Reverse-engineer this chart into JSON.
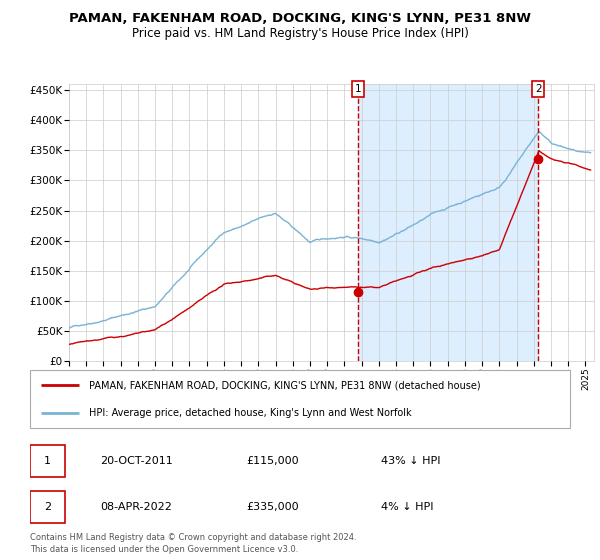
{
  "title": "PAMAN, FAKENHAM ROAD, DOCKING, KING'S LYNN, PE31 8NW",
  "subtitle": "Price paid vs. HM Land Registry's House Price Index (HPI)",
  "ylabel_ticks": [
    "£0",
    "£50K",
    "£100K",
    "£150K",
    "£200K",
    "£250K",
    "£300K",
    "£350K",
    "£400K",
    "£450K"
  ],
  "ytick_vals": [
    0,
    50000,
    100000,
    150000,
    200000,
    250000,
    300000,
    350000,
    400000,
    450000
  ],
  "ylim": [
    0,
    460000
  ],
  "xlim_start": 1995.0,
  "xlim_end": 2025.5,
  "sale1_x": 2011.8,
  "sale1_y": 115000,
  "sale1_label": "1",
  "sale2_x": 2022.27,
  "sale2_y": 335000,
  "sale2_label": "2",
  "shade_start": 2011.8,
  "shade_end": 2022.27,
  "hpi_color": "#7ab3d4",
  "price_color": "#cc0000",
  "shade_color": "#ddeeff",
  "grid_color": "#cccccc",
  "bg_color": "#ffffff",
  "legend_house": "PAMAN, FAKENHAM ROAD, DOCKING, KING'S LYNN, PE31 8NW (detached house)",
  "legend_hpi": "HPI: Average price, detached house, King's Lynn and West Norfolk",
  "table_row1": [
    "1",
    "20-OCT-2011",
    "£115,000",
    "43% ↓ HPI"
  ],
  "table_row2": [
    "2",
    "08-APR-2022",
    "£335,000",
    "4% ↓ HPI"
  ],
  "footnote": "Contains HM Land Registry data © Crown copyright and database right 2024.\nThis data is licensed under the Open Government Licence v3.0.",
  "title_fontsize": 9.5,
  "subtitle_fontsize": 8.5
}
